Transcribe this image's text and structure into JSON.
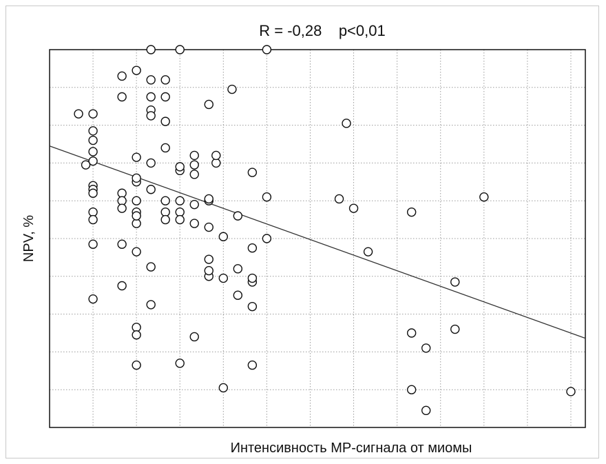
{
  "chart_data": {
    "type": "scatter",
    "title": "R = -0,28    p<0,01",
    "xlabel": "Интенсивность МР-сигнала от миомы",
    "ylabel": "NPV, %",
    "xlim": [
      0,
      37
    ],
    "ylim": [
      0,
      10
    ],
    "grid": true,
    "x_ticks": [
      3,
      6,
      9,
      12,
      15,
      18,
      21,
      24,
      27,
      30,
      33,
      36
    ],
    "y_ticks": [
      1,
      2,
      3,
      4,
      5,
      6,
      7,
      8,
      9,
      10
    ],
    "trendline": {
      "x": [
        0,
        37
      ],
      "y": [
        7.45,
        2.36
      ]
    },
    "points": [
      [
        7,
        10
      ],
      [
        9,
        10
      ],
      [
        15,
        10
      ],
      [
        5,
        9.3
      ],
      [
        6,
        9.45
      ],
      [
        7,
        9.2
      ],
      [
        8,
        9.2
      ],
      [
        12.6,
        8.95
      ],
      [
        5,
        8.75
      ],
      [
        7,
        8.75
      ],
      [
        8,
        8.75
      ],
      [
        11,
        8.55
      ],
      [
        7,
        8.4
      ],
      [
        7,
        8.25
      ],
      [
        8,
        8.1
      ],
      [
        3,
        8.3
      ],
      [
        2,
        8.3
      ],
      [
        20.5,
        8.05
      ],
      [
        3,
        7.85
      ],
      [
        3,
        7.6
      ],
      [
        3,
        7.3
      ],
      [
        3,
        7.05
      ],
      [
        6,
        7.15
      ],
      [
        7,
        7.0
      ],
      [
        8,
        7.4
      ],
      [
        10,
        7.2
      ],
      [
        11.5,
        7.0
      ],
      [
        10,
        6.95
      ],
      [
        11.5,
        7.2
      ],
      [
        2.5,
        6.95
      ],
      [
        9,
        6.8
      ],
      [
        9,
        6.9
      ],
      [
        10,
        6.7
      ],
      [
        15,
        6.1
      ],
      [
        14,
        6.75
      ],
      [
        3,
        6.4
      ],
      [
        6,
        6.5
      ],
      [
        6,
        6.6
      ],
      [
        7,
        6.3
      ],
      [
        3,
        6.3
      ],
      [
        3,
        6.2
      ],
      [
        5,
        6.2
      ],
      [
        3,
        5.7
      ],
      [
        3,
        5.5
      ],
      [
        5,
        6.0
      ],
      [
        5,
        5.8
      ],
      [
        6,
        6.0
      ],
      [
        6,
        5.7
      ],
      [
        8,
        6.0
      ],
      [
        8,
        5.7
      ],
      [
        9,
        6.0
      ],
      [
        9,
        5.7
      ],
      [
        10,
        5.9
      ],
      [
        11,
        6.0
      ],
      [
        11,
        6.05
      ],
      [
        6,
        5.4
      ],
      [
        6,
        5.6
      ],
      [
        8,
        5.5
      ],
      [
        9,
        5.5
      ],
      [
        10,
        5.4
      ],
      [
        11,
        5.3
      ],
      [
        13,
        5.6
      ],
      [
        14,
        4.75
      ],
      [
        12,
        5.05
      ],
      [
        20,
        6.05
      ],
      [
        21,
        5.8
      ],
      [
        3,
        4.85
      ],
      [
        5,
        4.85
      ],
      [
        7,
        4.25
      ],
      [
        6,
        4.65
      ],
      [
        11,
        4.45
      ],
      [
        11,
        4.0
      ],
      [
        11,
        4.15
      ],
      [
        13,
        4.2
      ],
      [
        14,
        3.85
      ],
      [
        14,
        3.95
      ],
      [
        15,
        5.0
      ],
      [
        12,
        3.95
      ],
      [
        13,
        3.5
      ],
      [
        14,
        3.2
      ],
      [
        3,
        3.4
      ],
      [
        5,
        3.75
      ],
      [
        7,
        3.25
      ],
      [
        6,
        2.65
      ],
      [
        6,
        2.45
      ],
      [
        6,
        1.65
      ],
      [
        9,
        1.7
      ],
      [
        10,
        2.4
      ],
      [
        12,
        1.05
      ],
      [
        14,
        1.65
      ],
      [
        25,
        5.7
      ],
      [
        22,
        4.65
      ],
      [
        25,
        2.5
      ],
      [
        26,
        2.1
      ],
      [
        28,
        3.85
      ],
      [
        30,
        6.1
      ],
      [
        28,
        2.6
      ],
      [
        25,
        1.0
      ],
      [
        26,
        0.45
      ],
      [
        36,
        0.95
      ]
    ]
  }
}
